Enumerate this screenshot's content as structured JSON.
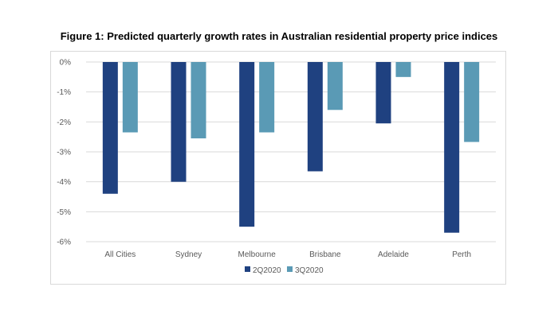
{
  "chart_data": {
    "type": "bar",
    "title": "Figure 1: Predicted quarterly growth rates in Australian residential property price indices",
    "categories": [
      "All Cities",
      "Sydney",
      "Melbourne",
      "Brisbane",
      "Adelaide",
      "Perth"
    ],
    "series": [
      {
        "name": "2Q2020",
        "color": "#1f4180",
        "values": [
          -4.4,
          -4.0,
          -5.5,
          -3.65,
          -2.05,
          -5.7
        ]
      },
      {
        "name": "3Q2020",
        "color": "#5a9ab5",
        "values": [
          -2.35,
          -2.55,
          -2.35,
          -1.6,
          -0.5,
          -2.67
        ]
      }
    ],
    "yticks": [
      0,
      -1,
      -2,
      -3,
      -4,
      -5,
      -6
    ],
    "ytick_labels": [
      "0%",
      "-1%",
      "-2%",
      "-3%",
      "-4%",
      "-5%",
      "-6%"
    ],
    "ylim": [
      -6,
      0
    ],
    "xlabel": "",
    "ylabel": "",
    "grid": true,
    "legend_position": "bottom"
  }
}
